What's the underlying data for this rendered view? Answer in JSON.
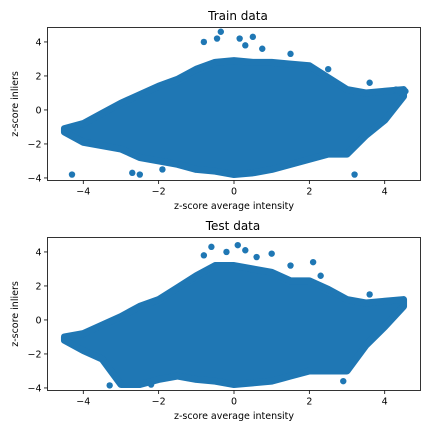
{
  "chart_data": [
    {
      "type": "scatter",
      "title": "Train data",
      "xlabel": "z-score average intensity",
      "ylabel": "z-score inliers",
      "xlim": [
        -4.95,
        4.95
      ],
      "ylim": [
        -4.15,
        4.85
      ],
      "xticks": [
        -4,
        -2,
        0,
        2,
        4
      ],
      "yticks": [
        -4,
        -2,
        0,
        2,
        4
      ],
      "xtick_labels": [
        "−4",
        "−2",
        "0",
        "2",
        "4"
      ],
      "ytick_labels": [
        "−4",
        "−2",
        "0",
        "2",
        "4"
      ],
      "grid": false,
      "color": "#1f77b4",
      "density_envelope": {
        "x": [
          -4.5,
          -4.0,
          -3.5,
          -3.0,
          -2.5,
          -2.0,
          -1.5,
          -1.0,
          -0.5,
          0.0,
          0.5,
          1.0,
          1.5,
          2.0,
          2.5,
          3.0,
          3.5,
          4.0,
          4.5
        ],
        "y_low": [
          -1.3,
          -1.9,
          -2.1,
          -2.3,
          -2.8,
          -3.0,
          -3.2,
          -3.5,
          -3.6,
          -3.8,
          -3.7,
          -3.5,
          -3.2,
          -2.9,
          -2.6,
          -2.6,
          -1.5,
          -0.6,
          0.8
        ],
        "y_high": [
          -1.1,
          -0.8,
          -0.2,
          0.4,
          0.9,
          1.4,
          1.8,
          2.4,
          2.8,
          2.9,
          2.8,
          2.8,
          2.7,
          2.6,
          1.9,
          1.2,
          1.0,
          1.1,
          1.2
        ]
      },
      "outliers": [
        {
          "x": -4.3,
          "y": -3.8
        },
        {
          "x": -2.7,
          "y": -3.7
        },
        {
          "x": -2.5,
          "y": -3.8
        },
        {
          "x": -1.9,
          "y": -3.5
        },
        {
          "x": -0.8,
          "y": 4.0
        },
        {
          "x": -0.45,
          "y": 4.2
        },
        {
          "x": -0.35,
          "y": 4.6
        },
        {
          "x": 0.15,
          "y": 4.2
        },
        {
          "x": 0.3,
          "y": 3.8
        },
        {
          "x": 0.5,
          "y": 4.3
        },
        {
          "x": 0.75,
          "y": 3.6
        },
        {
          "x": 1.5,
          "y": 3.3
        },
        {
          "x": 2.5,
          "y": 2.4
        },
        {
          "x": 3.2,
          "y": -3.8
        },
        {
          "x": 3.6,
          "y": 1.6
        },
        {
          "x": 4.3,
          "y": 1.2
        },
        {
          "x": 4.55,
          "y": 1.1
        }
      ]
    },
    {
      "type": "scatter",
      "title": "Test data",
      "xlabel": "z-score average intensity",
      "ylabel": "z-score inliers",
      "xlim": [
        -4.95,
        4.95
      ],
      "ylim": [
        -4.15,
        4.85
      ],
      "xticks": [
        -4,
        -2,
        0,
        2,
        4
      ],
      "yticks": [
        -4,
        -2,
        0,
        2,
        4
      ],
      "xtick_labels": [
        "−4",
        "−2",
        "0",
        "2",
        "4"
      ],
      "ytick_labels": [
        "−4",
        "−2",
        "0",
        "2",
        "4"
      ],
      "grid": false,
      "color": "#1f77b4",
      "density_envelope": {
        "x": [
          -4.5,
          -4.0,
          -3.5,
          -3.0,
          -2.5,
          -2.0,
          -1.5,
          -1.0,
          -0.5,
          0.0,
          0.5,
          1.0,
          1.5,
          2.0,
          2.5,
          3.0,
          3.5,
          4.0,
          4.5
        ],
        "y_low": [
          -1.2,
          -1.8,
          -2.3,
          -3.8,
          -3.8,
          -3.5,
          -3.3,
          -3.5,
          -3.6,
          -3.8,
          -3.7,
          -3.6,
          -3.3,
          -3.0,
          -3.0,
          -3.0,
          -1.5,
          -0.4,
          0.8
        ],
        "y_high": [
          -1.0,
          -0.8,
          -0.3,
          0.2,
          0.8,
          1.2,
          1.9,
          2.6,
          3.2,
          3.2,
          3.0,
          2.8,
          2.3,
          2.3,
          1.8,
          1.2,
          1.0,
          1.1,
          1.2
        ]
      },
      "outliers": [
        {
          "x": -3.3,
          "y": -3.85
        },
        {
          "x": -2.2,
          "y": -3.8
        },
        {
          "x": -0.8,
          "y": 3.8
        },
        {
          "x": -0.6,
          "y": 4.3
        },
        {
          "x": -0.2,
          "y": 4.0
        },
        {
          "x": 0.1,
          "y": 4.4
        },
        {
          "x": 0.3,
          "y": 4.1
        },
        {
          "x": 0.6,
          "y": 3.7
        },
        {
          "x": 1.0,
          "y": 3.9
        },
        {
          "x": 1.5,
          "y": 3.2
        },
        {
          "x": 2.1,
          "y": 3.4
        },
        {
          "x": 2.3,
          "y": 2.6
        },
        {
          "x": 2.9,
          "y": -3.6
        },
        {
          "x": 3.6,
          "y": 1.5
        },
        {
          "x": 4.5,
          "y": 1.1
        }
      ]
    }
  ]
}
